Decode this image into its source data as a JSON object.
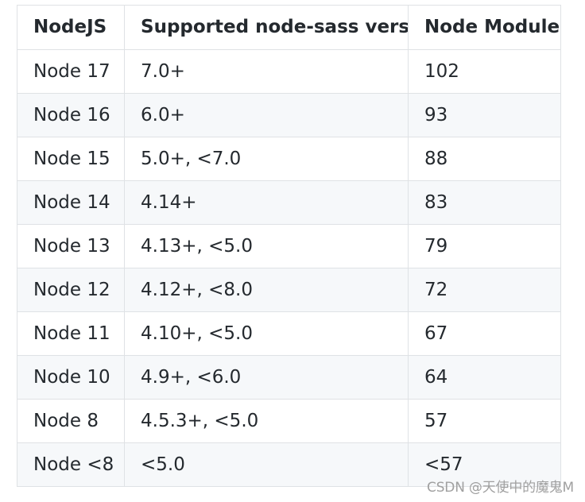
{
  "table": {
    "headers": [
      "NodeJS",
      "Supported node-sass version",
      "Node Module"
    ],
    "rows": [
      [
        "Node 17",
        "7.0+",
        "102"
      ],
      [
        "Node 16",
        "6.0+",
        "93"
      ],
      [
        "Node 15",
        "5.0+, <7.0",
        "88"
      ],
      [
        "Node 14",
        "4.14+",
        "83"
      ],
      [
        "Node 13",
        "4.13+, <5.0",
        "79"
      ],
      [
        "Node 12",
        "4.12+, <8.0",
        "72"
      ],
      [
        "Node 11",
        "4.10+, <5.0",
        "67"
      ],
      [
        "Node 10",
        "4.9+, <6.0",
        "64"
      ],
      [
        "Node 8",
        "4.5.3+, <5.0",
        "57"
      ],
      [
        "Node <8",
        "<5.0",
        "<57"
      ]
    ]
  },
  "watermark": "CSDN @天使中的魔鬼M",
  "colors": {
    "border": "#dfe2e5",
    "stripe": "#f6f8fa",
    "text": "#24292e"
  }
}
